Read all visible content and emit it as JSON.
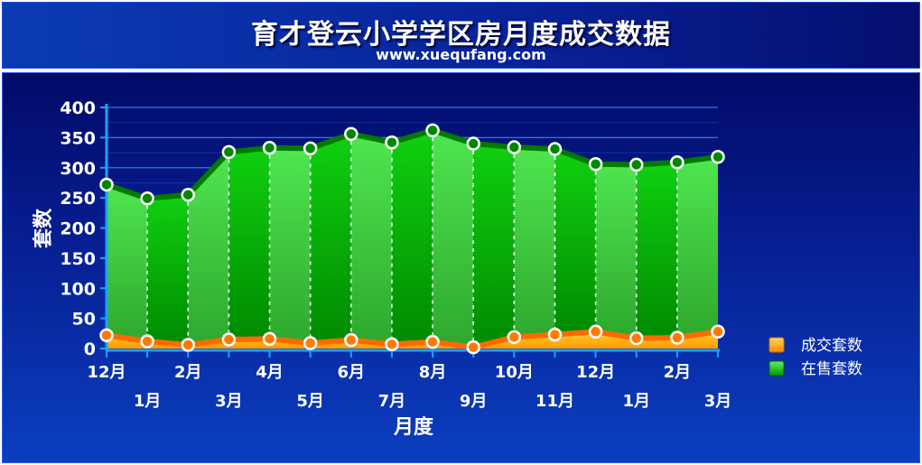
{
  "header": {
    "title": "育才登云小学学区房月度成交数据",
    "subtitle": "www.xuequfang.com"
  },
  "chart_data": {
    "type": "area",
    "xlabel": "月度",
    "ylabel": "套数",
    "ylim": [
      0,
      400
    ],
    "yticks": [
      0,
      50,
      100,
      150,
      200,
      250,
      300,
      350,
      400
    ],
    "categories": [
      "12月",
      "1月",
      "2月",
      "3月",
      "4月",
      "5月",
      "6月",
      "7月",
      "8月",
      "9月",
      "10月",
      "11月",
      "12月",
      "1月",
      "2月",
      "3月"
    ],
    "series": [
      {
        "name": "成交套数",
        "color": "#ff9a00",
        "values": [
          22,
          12,
          6,
          15,
          16,
          9,
          14,
          7,
          11,
          2,
          19,
          23,
          28,
          17,
          18,
          28
        ]
      },
      {
        "name": "在售套数",
        "color": "#00b000",
        "values": [
          272,
          249,
          255,
          326,
          333,
          332,
          356,
          342,
          362,
          340,
          334,
          331,
          306,
          305,
          309,
          318
        ]
      }
    ],
    "grid": true,
    "legend_position": "right"
  },
  "colors": {
    "header_bg": "#0a3bb3",
    "panel_bg": "#071f93",
    "area_light": "#44dd44",
    "area_dark": "#00b000",
    "deal_fill": "#ffb000",
    "deal_line": "#ff6a00"
  }
}
